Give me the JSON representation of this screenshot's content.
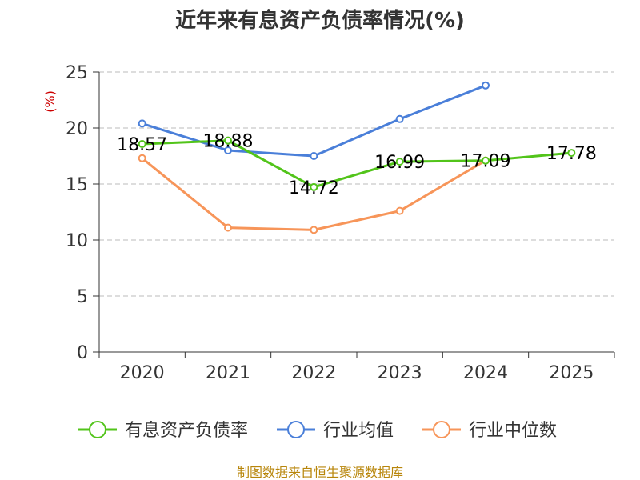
{
  "chart_data": {
    "type": "line",
    "title": "近年来有息资产负债率情况(%)",
    "ylabel": "(%)",
    "xlabel": "",
    "categories": [
      "2020",
      "2021",
      "2022",
      "2023",
      "2024",
      "2025"
    ],
    "ylim": [
      0,
      25
    ],
    "yticks": [
      0,
      5,
      10,
      15,
      20,
      25
    ],
    "grid": true,
    "legend_position": "bottom",
    "series": [
      {
        "name": "有息资产负债率",
        "color": "#52c41a",
        "values": [
          18.57,
          18.88,
          14.72,
          16.99,
          17.09,
          17.78
        ],
        "labels": [
          "18.57",
          "18.88",
          "14.72",
          "16.99",
          "17.09",
          "17.78"
        ]
      },
      {
        "name": "行业均值",
        "color": "#4a7fd9",
        "values": [
          20.4,
          18.0,
          17.5,
          20.8,
          23.8,
          null
        ]
      },
      {
        "name": "行业中位数",
        "color": "#f79559",
        "values": [
          17.3,
          11.1,
          10.9,
          12.6,
          17.1,
          null
        ]
      }
    ]
  },
  "footer": {
    "source": "制图数据来自恒生聚源数据库"
  }
}
